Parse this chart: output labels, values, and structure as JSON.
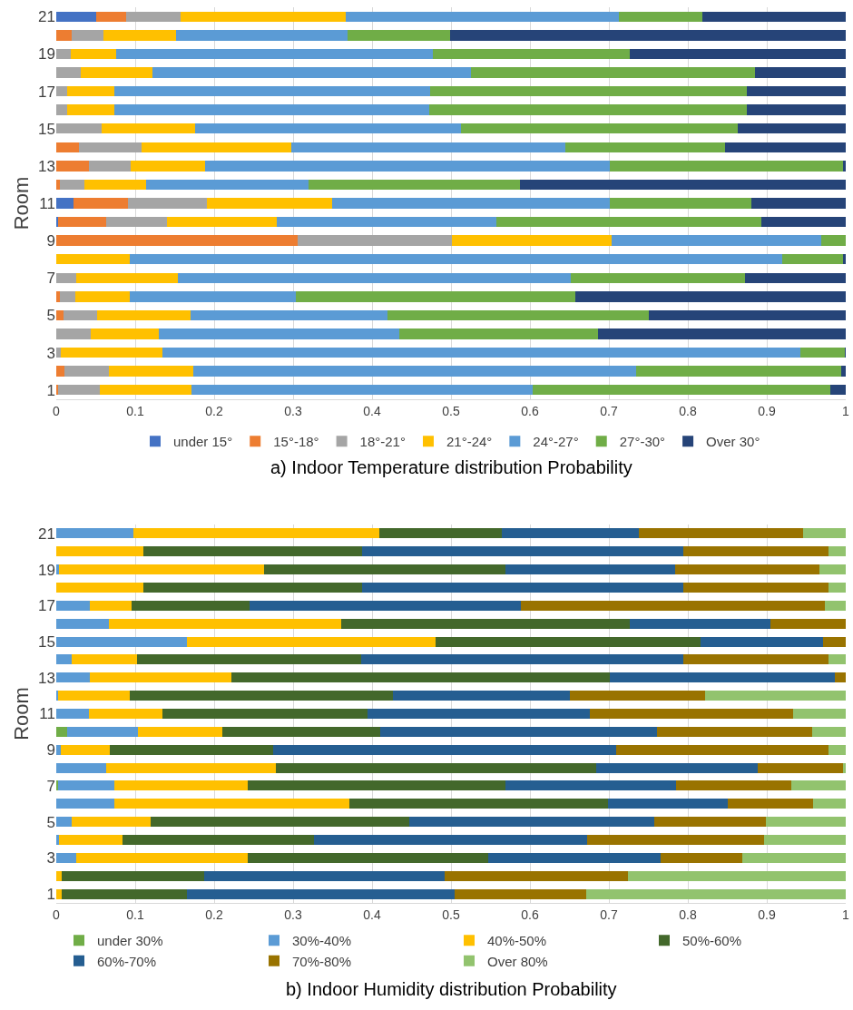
{
  "chart_data": [
    {
      "type": "bar",
      "orientation": "horizontal",
      "stacked": true,
      "title": "a) Indoor Temperature distribution Probability",
      "ylabel": "Room",
      "legend": "bottom",
      "grid": "x",
      "xlim": [
        0,
        1
      ],
      "xticks": [
        0,
        0.1,
        0.2,
        0.3,
        0.4,
        0.5,
        0.6,
        0.7,
        0.8,
        0.9,
        1
      ],
      "categories": [
        "21",
        null,
        "19",
        null,
        "17",
        null,
        "15",
        null,
        "13",
        null,
        "11",
        null,
        "9",
        null,
        "7",
        null,
        "5",
        null,
        "3",
        null,
        "1"
      ],
      "series": [
        {
          "name": "under 15°",
          "color": "#4472c4",
          "values": [
            0.05,
            0,
            0,
            0,
            0,
            0,
            0,
            0,
            0,
            0,
            0.022,
            0.002,
            0,
            0,
            0,
            0,
            0,
            0,
            0,
            0,
            0
          ]
        },
        {
          "name": "15°-18°",
          "color": "#ed7d31",
          "values": [
            0.039,
            0.02,
            0,
            0,
            0,
            0,
            0,
            0.029,
            0.041,
            0.005,
            0.069,
            0.061,
            0.306,
            0,
            0,
            0.005,
            0.009,
            0,
            0,
            0.01,
            0.002
          ]
        },
        {
          "name": "18°-21°",
          "color": "#a5a5a5",
          "values": [
            0.069,
            0.04,
            0.018,
            0.031,
            0.014,
            0.014,
            0.058,
            0.079,
            0.053,
            0.031,
            0.1,
            0.077,
            0.195,
            0,
            0.025,
            0.019,
            0.043,
            0.044,
            0.006,
            0.057,
            0.053
          ]
        },
        {
          "name": "21°-24°",
          "color": "#ffc000",
          "values": [
            0.209,
            0.092,
            0.058,
            0.091,
            0.059,
            0.059,
            0.118,
            0.19,
            0.095,
            0.078,
            0.158,
            0.139,
            0.202,
            0.093,
            0.129,
            0.069,
            0.118,
            0.086,
            0.128,
            0.106,
            0.116
          ]
        },
        {
          "name": "24°-27°",
          "color": "#5b9bd5",
          "values": [
            0.346,
            0.217,
            0.401,
            0.403,
            0.4,
            0.399,
            0.337,
            0.347,
            0.512,
            0.206,
            0.352,
            0.278,
            0.266,
            0.826,
            0.498,
            0.21,
            0.249,
            0.305,
            0.809,
            0.561,
            0.433
          ]
        },
        {
          "name": "27°-30°",
          "color": "#70ad47",
          "values": [
            0.105,
            0.13,
            0.25,
            0.36,
            0.402,
            0.403,
            0.35,
            0.202,
            0.296,
            0.267,
            0.179,
            0.336,
            0.031,
            0.078,
            0.22,
            0.354,
            0.331,
            0.251,
            0.056,
            0.26,
            0.377
          ]
        },
        {
          "name": "Over 30°",
          "color": "#264478",
          "values": [
            0.182,
            0.501,
            0.273,
            0.115,
            0.125,
            0.125,
            0.137,
            0.153,
            0.003,
            0.413,
            0.12,
            0.107,
            0,
            0.003,
            0.128,
            0.343,
            0.25,
            0.314,
            0.001,
            0.006,
            0.019
          ]
        }
      ]
    },
    {
      "type": "bar",
      "orientation": "horizontal",
      "stacked": true,
      "title": "b) Indoor Humidity distribution Probability",
      "ylabel": "Room",
      "legend": "bottom",
      "grid": "x",
      "xlim": [
        0,
        1
      ],
      "xticks": [
        0,
        0.1,
        0.2,
        0.3,
        0.4,
        0.5,
        0.6,
        0.7,
        0.8,
        0.9,
        1
      ],
      "categories": [
        "21",
        null,
        "19",
        null,
        "17",
        null,
        "15",
        null,
        "13",
        null,
        "11",
        null,
        "9",
        null,
        "7",
        null,
        "5",
        null,
        "3",
        null,
        "1"
      ],
      "series": [
        {
          "name": "under 30%",
          "color": "#70ad47",
          "values": [
            0,
            0,
            0,
            0,
            0,
            0,
            0,
            0,
            0,
            0,
            0,
            0.014,
            0,
            0,
            0.002,
            0,
            0,
            0,
            0,
            0,
            0
          ]
        },
        {
          "name": "30%-40%",
          "color": "#5b9bd5",
          "values": [
            0.098,
            0,
            0.004,
            0,
            0.042,
            0.067,
            0.165,
            0.019,
            0.042,
            0.002,
            0.041,
            0.089,
            0.006,
            0.063,
            0.072,
            0.074,
            0.02,
            0.004,
            0.025,
            0,
            0
          ]
        },
        {
          "name": "40%-50%",
          "color": "#ffc000",
          "values": [
            0.311,
            0.11,
            0.259,
            0.11,
            0.053,
            0.294,
            0.315,
            0.083,
            0.18,
            0.091,
            0.093,
            0.107,
            0.062,
            0.215,
            0.168,
            0.297,
            0.099,
            0.08,
            0.217,
            0.007,
            0.007
          ]
        },
        {
          "name": "50%-60%",
          "color": "#43682b",
          "values": [
            0.155,
            0.277,
            0.306,
            0.277,
            0.15,
            0.366,
            0.336,
            0.284,
            0.479,
            0.334,
            0.26,
            0.2,
            0.207,
            0.406,
            0.327,
            0.328,
            0.328,
            0.242,
            0.305,
            0.18,
            0.158
          ]
        },
        {
          "name": "60%-70%",
          "color": "#255e91",
          "values": [
            0.174,
            0.407,
            0.215,
            0.407,
            0.344,
            0.178,
            0.155,
            0.408,
            0.285,
            0.224,
            0.282,
            0.351,
            0.434,
            0.205,
            0.216,
            0.152,
            0.31,
            0.346,
            0.218,
            0.305,
            0.34
          ]
        },
        {
          "name": "70%-80%",
          "color": "#997300",
          "values": [
            0.208,
            0.184,
            0.183,
            0.184,
            0.384,
            0.095,
            0.029,
            0.184,
            0.014,
            0.171,
            0.257,
            0.196,
            0.269,
            0.108,
            0.146,
            0.108,
            0.142,
            0.224,
            0.104,
            0.232,
            0.166
          ]
        },
        {
          "name": "Over 80%",
          "color": "#92c36e",
          "values": [
            0.054,
            0.022,
            0.033,
            0.022,
            0.027,
            0,
            0,
            0.022,
            0,
            0.178,
            0.067,
            0.043,
            0.022,
            0.003,
            0.069,
            0.041,
            0.101,
            0.104,
            0.131,
            0.276,
            0.329
          ]
        }
      ]
    }
  ]
}
